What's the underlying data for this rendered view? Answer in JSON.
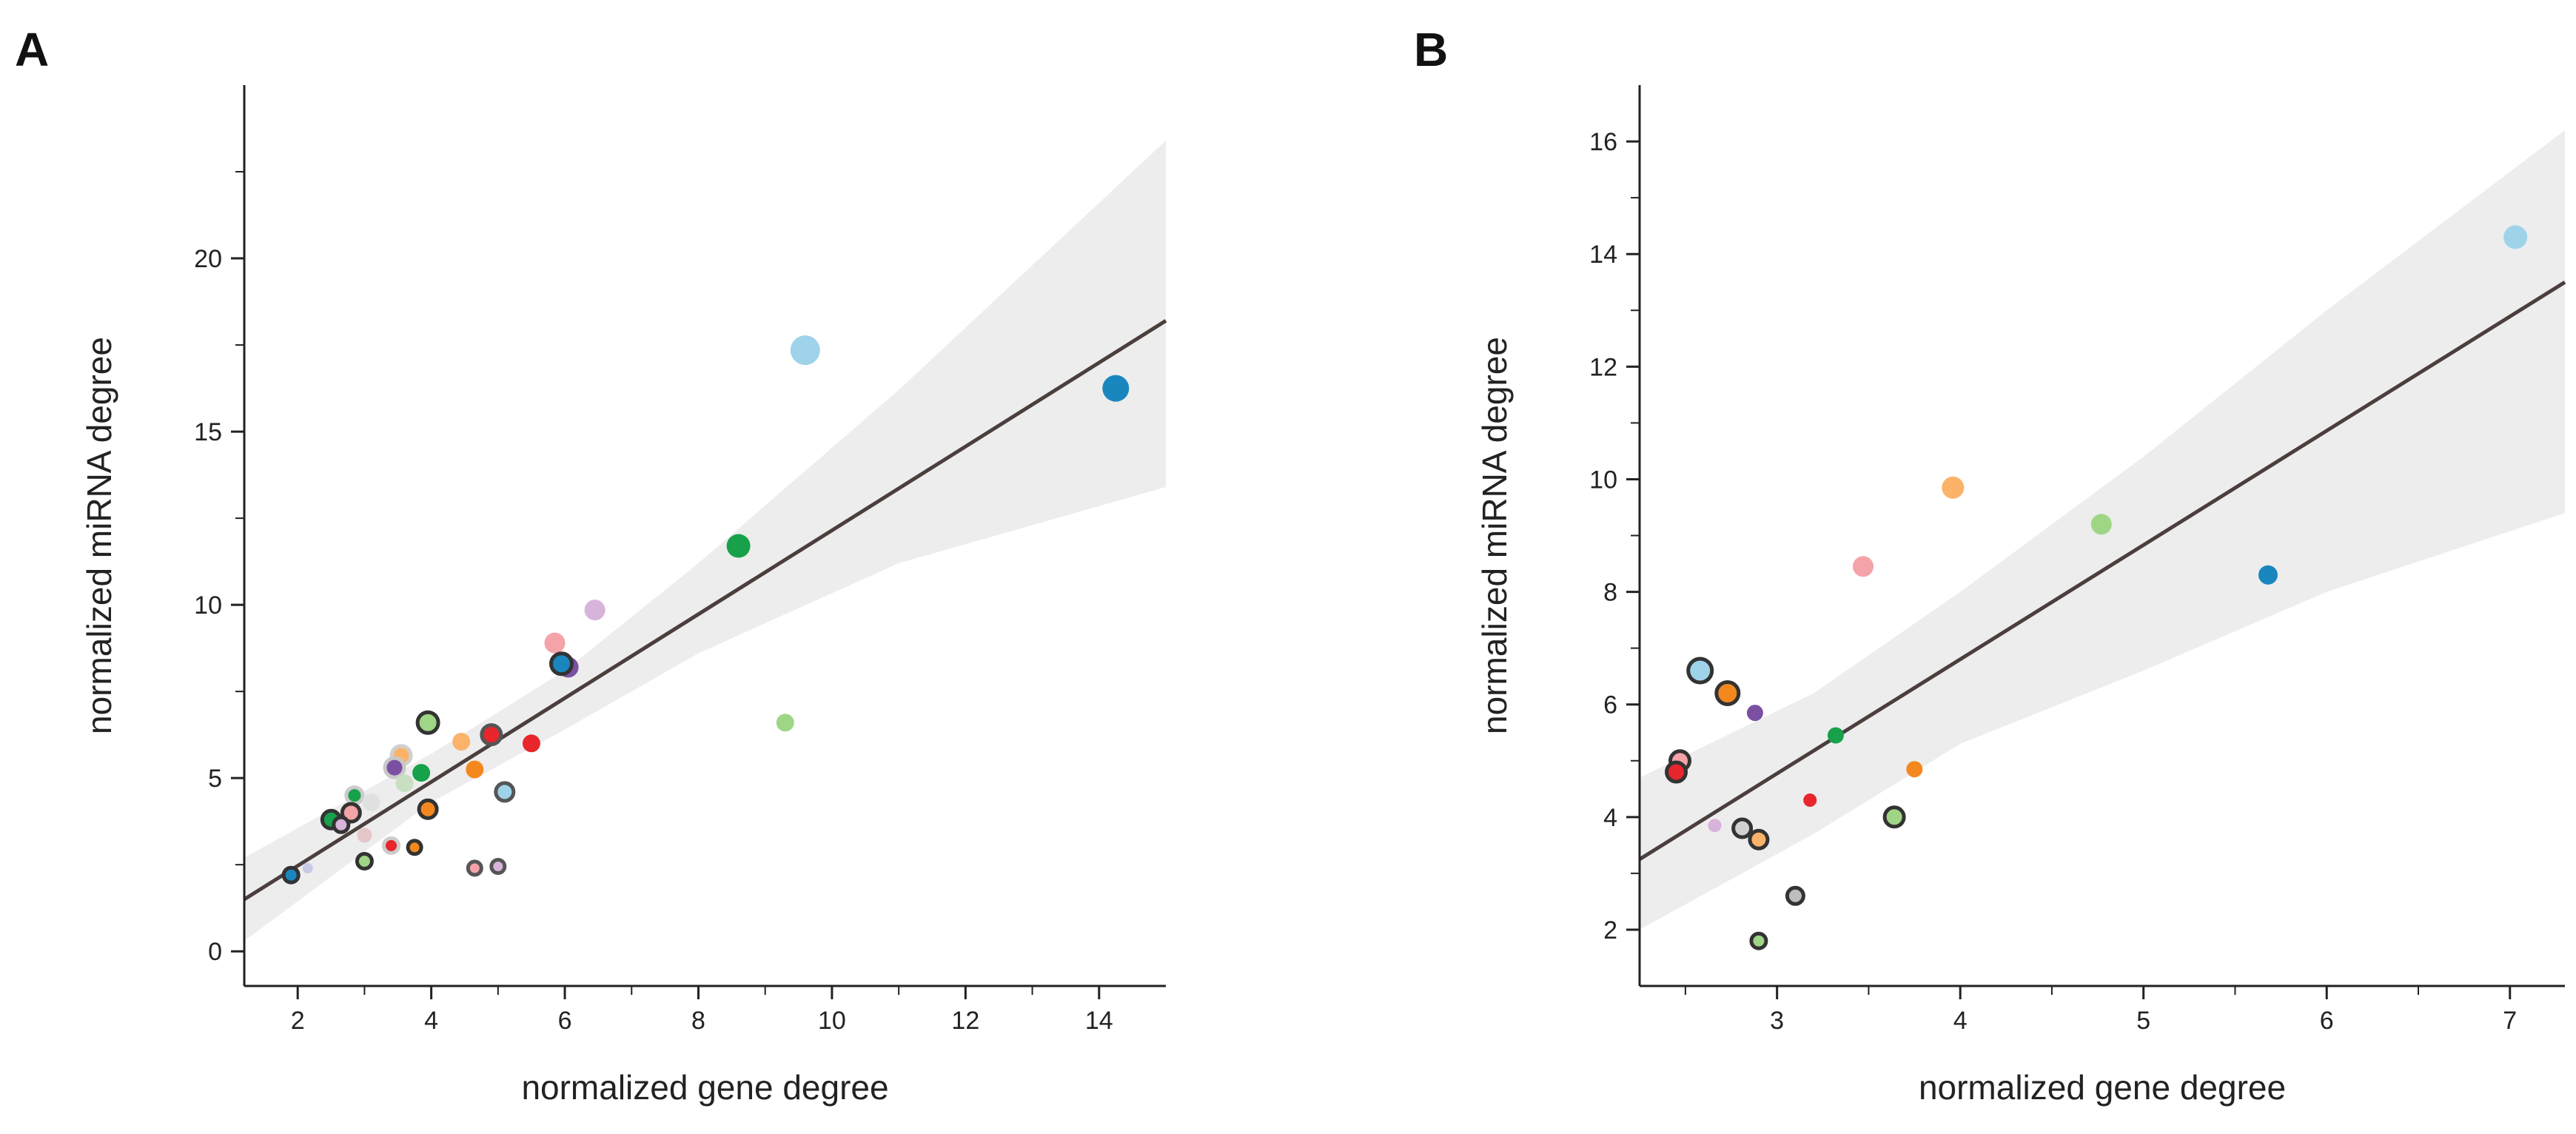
{
  "chart_data": [
    {
      "panel": "A",
      "type": "scatter",
      "xlabel": "normalized gene degree",
      "ylabel": "normalized miRNA degree",
      "xlim": [
        1.2,
        15
      ],
      "ylim": [
        -1,
        25
      ],
      "xticks": [
        2,
        4,
        6,
        8,
        10,
        12,
        14
      ],
      "yticks": [
        0,
        5,
        10,
        15,
        20
      ],
      "yminor": [
        2.5,
        7.5,
        12.5,
        17.5,
        22.5
      ],
      "xminor": [
        3,
        5,
        7,
        9,
        11,
        13
      ],
      "fit": {
        "x0": 1.2,
        "y0": 1.5,
        "x1": 15,
        "y1": 18.2
      },
      "ci": {
        "upper": [
          [
            1.2,
            2.7
          ],
          [
            4.0,
            5.7
          ],
          [
            6.0,
            8.1
          ],
          [
            8.0,
            11.2
          ],
          [
            11.0,
            16.2
          ],
          [
            15.0,
            23.4
          ]
        ],
        "lower": [
          [
            15.0,
            13.4
          ],
          [
            11.0,
            11.2
          ],
          [
            8.0,
            8.6
          ],
          [
            6.0,
            6.4
          ],
          [
            4.0,
            4.3
          ],
          [
            1.2,
            0.3
          ]
        ]
      },
      "points": [
        {
          "x": 9.6,
          "y": 17.35,
          "r": 20,
          "color": "#9fd3ea",
          "ring": ""
        },
        {
          "x": 14.25,
          "y": 16.25,
          "r": 18,
          "color": "#1a86be",
          "ring": ""
        },
        {
          "x": 8.6,
          "y": 11.7,
          "r": 16,
          "color": "#17a14a",
          "ring": ""
        },
        {
          "x": 6.45,
          "y": 9.85,
          "r": 14,
          "color": "#d8b3db",
          "ring": ""
        },
        {
          "x": 5.85,
          "y": 8.9,
          "r": 14,
          "color": "#f4a3a8",
          "ring": ""
        },
        {
          "x": 6.05,
          "y": 8.2,
          "r": 14,
          "color": "#7b4fa2",
          "ring": ""
        },
        {
          "x": 5.95,
          "y": 8.3,
          "r": 14,
          "color": "#1a86be",
          "ring": "#333333"
        },
        {
          "x": 9.3,
          "y": 6.6,
          "r": 12,
          "color": "#9fd686",
          "ring": ""
        },
        {
          "x": 3.95,
          "y": 6.6,
          "r": 14,
          "color": "#9fd686",
          "ring": "#333333"
        },
        {
          "x": 4.9,
          "y": 6.25,
          "r": 13,
          "color": "#e8262c",
          "ring": "#555555"
        },
        {
          "x": 4.45,
          "y": 6.05,
          "r": 12,
          "color": "#fbb36a",
          "ring": ""
        },
        {
          "x": 5.5,
          "y": 6.0,
          "r": 12,
          "color": "#e8262c",
          "ring": ""
        },
        {
          "x": 3.55,
          "y": 5.65,
          "r": 13,
          "color": "#fbb36a",
          "ring": "#d0d0d0"
        },
        {
          "x": 3.45,
          "y": 5.3,
          "r": 13,
          "color": "#7b4fa2",
          "ring": "#c8c8c8"
        },
        {
          "x": 3.85,
          "y": 5.15,
          "r": 12,
          "color": "#17a14a",
          "ring": ""
        },
        {
          "x": 4.65,
          "y": 5.25,
          "r": 12,
          "color": "#f4881f",
          "ring": ""
        },
        {
          "x": 3.6,
          "y": 4.85,
          "r": 12,
          "color": "#c9dfc2",
          "ring": ""
        },
        {
          "x": 5.1,
          "y": 4.6,
          "r": 12,
          "color": "#9fd3ea",
          "ring": "#555555"
        },
        {
          "x": 2.85,
          "y": 4.5,
          "r": 11,
          "color": "#17a14a",
          "ring": "#cccccc"
        },
        {
          "x": 3.1,
          "y": 4.3,
          "r": 12,
          "color": "#e0e0e0",
          "ring": ""
        },
        {
          "x": 3.95,
          "y": 4.1,
          "r": 12,
          "color": "#f4881f",
          "ring": "#333333"
        },
        {
          "x": 2.8,
          "y": 4.0,
          "r": 12,
          "color": "#f4a3a8",
          "ring": "#333333"
        },
        {
          "x": 2.5,
          "y": 3.8,
          "r": 12,
          "color": "#17a14a",
          "ring": "#333333"
        },
        {
          "x": 2.65,
          "y": 3.65,
          "r": 10,
          "color": "#d8b3db",
          "ring": "#333333"
        },
        {
          "x": 3.0,
          "y": 3.35,
          "r": 10,
          "color": "#e5c7c9",
          "ring": ""
        },
        {
          "x": 3.4,
          "y": 3.05,
          "r": 10,
          "color": "#e8262c",
          "ring": "#cccccc"
        },
        {
          "x": 3.75,
          "y": 3.0,
          "r": 9,
          "color": "#f4881f",
          "ring": "#333333"
        },
        {
          "x": 3.0,
          "y": 2.6,
          "r": 10,
          "color": "#9fd686",
          "ring": "#333333"
        },
        {
          "x": 4.65,
          "y": 2.4,
          "r": 9,
          "color": "#f4a3a8",
          "ring": "#555555"
        },
        {
          "x": 5.0,
          "y": 2.45,
          "r": 9,
          "color": "#d8b3db",
          "ring": "#555555"
        },
        {
          "x": 1.9,
          "y": 2.2,
          "r": 10,
          "color": "#1a86be",
          "ring": "#333333"
        },
        {
          "x": 2.15,
          "y": 2.4,
          "r": 7,
          "color": "#c9c9e6",
          "ring": ""
        }
      ]
    },
    {
      "panel": "B",
      "type": "scatter",
      "xlabel": "normalized gene degree",
      "ylabel": "normalized miRNA degree",
      "xlim": [
        2.25,
        7.3
      ],
      "ylim": [
        1.0,
        17.0
      ],
      "xticks": [
        3,
        4,
        5,
        6,
        7
      ],
      "yticks": [
        2,
        4,
        6,
        8,
        10,
        12,
        14,
        16
      ],
      "yminor": [
        3,
        5,
        7,
        9,
        11,
        13,
        15
      ],
      "xminor": [
        2.5,
        3.5,
        4.5,
        5.5,
        6.5
      ],
      "fit": {
        "x0": 2.25,
        "y0": 3.25,
        "x1": 7.3,
        "y1": 13.5
      },
      "ci": {
        "upper": [
          [
            2.25,
            4.7
          ],
          [
            3.2,
            6.2
          ],
          [
            4.0,
            8.0
          ],
          [
            5.0,
            10.4
          ],
          [
            6.0,
            13.0
          ],
          [
            7.3,
            16.2
          ]
        ],
        "lower": [
          [
            7.3,
            9.4
          ],
          [
            6.0,
            8.0
          ],
          [
            5.0,
            6.6
          ],
          [
            4.0,
            5.3
          ],
          [
            3.2,
            3.7
          ],
          [
            2.25,
            2.0
          ]
        ]
      },
      "points": [
        {
          "x": 7.03,
          "y": 14.3,
          "r": 16,
          "color": "#9fd3ea",
          "ring": ""
        },
        {
          "x": 3.96,
          "y": 9.85,
          "r": 15,
          "color": "#fbb36a",
          "ring": ""
        },
        {
          "x": 4.77,
          "y": 9.2,
          "r": 14,
          "color": "#9fd686",
          "ring": ""
        },
        {
          "x": 3.47,
          "y": 8.45,
          "r": 14,
          "color": "#f4a3a8",
          "ring": ""
        },
        {
          "x": 5.68,
          "y": 8.3,
          "r": 13,
          "color": "#1a86be",
          "ring": ""
        },
        {
          "x": 2.58,
          "y": 6.6,
          "r": 16,
          "color": "#9fd3ea",
          "ring": "#333333"
        },
        {
          "x": 2.73,
          "y": 6.2,
          "r": 15,
          "color": "#f4881f",
          "ring": "#333333"
        },
        {
          "x": 2.88,
          "y": 5.85,
          "r": 11,
          "color": "#7b4fa2",
          "ring": ""
        },
        {
          "x": 3.32,
          "y": 5.45,
          "r": 11,
          "color": "#17a14a",
          "ring": ""
        },
        {
          "x": 2.47,
          "y": 5.0,
          "r": 13,
          "color": "#f4a3a8",
          "ring": "#333333"
        },
        {
          "x": 2.45,
          "y": 4.8,
          "r": 13,
          "color": "#e8262c",
          "ring": "#333333"
        },
        {
          "x": 3.75,
          "y": 4.85,
          "r": 11,
          "color": "#f4881f",
          "ring": ""
        },
        {
          "x": 3.18,
          "y": 4.3,
          "r": 9,
          "color": "#e8262c",
          "ring": ""
        },
        {
          "x": 3.64,
          "y": 4.0,
          "r": 13,
          "color": "#9fd686",
          "ring": "#333333"
        },
        {
          "x": 2.66,
          "y": 3.85,
          "r": 9,
          "color": "#d8b3db",
          "ring": ""
        },
        {
          "x": 2.81,
          "y": 3.8,
          "r": 12,
          "color": "#d0d0d0",
          "ring": "#333333"
        },
        {
          "x": 2.9,
          "y": 3.6,
          "r": 12,
          "color": "#fbb36a",
          "ring": "#333333"
        },
        {
          "x": 3.1,
          "y": 2.6,
          "r": 11,
          "color": "#bdbdbd",
          "ring": "#333333"
        },
        {
          "x": 2.9,
          "y": 1.8,
          "r": 10,
          "color": "#9fd686",
          "ring": "#333333"
        }
      ]
    }
  ]
}
